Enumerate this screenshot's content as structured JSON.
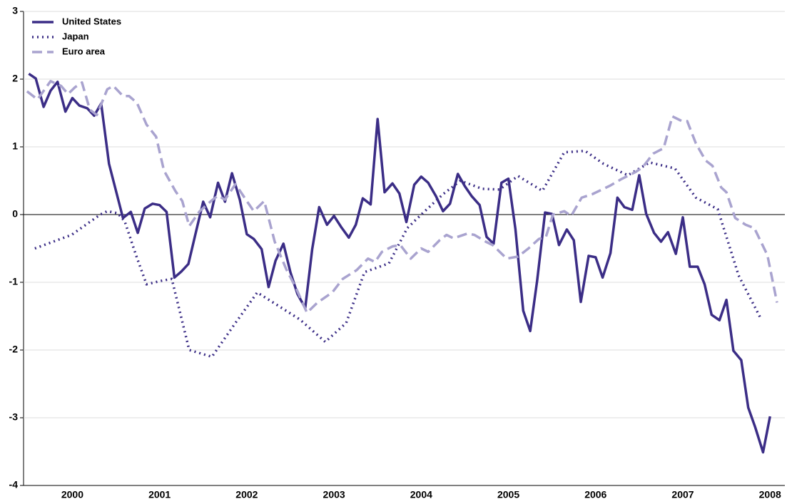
{
  "chart_data": {
    "type": "line",
    "xlim": [
      1999.94,
      2008.67
    ],
    "xticks": [
      {
        "value": 2000.5,
        "label": "2000"
      },
      {
        "value": 2001.5,
        "label": "2001"
      },
      {
        "value": 2002.5,
        "label": "2002"
      },
      {
        "value": 2003.5,
        "label": "2003"
      },
      {
        "value": 2004.5,
        "label": "2004"
      },
      {
        "value": 2005.5,
        "label": "2005"
      },
      {
        "value": 2006.5,
        "label": "2006"
      },
      {
        "value": 2007.5,
        "label": "2007"
      },
      {
        "value": 2008.5,
        "label": "2008"
      }
    ],
    "ylim": [
      -4,
      3
    ],
    "yticks": [
      -4,
      -3,
      -2,
      -1,
      0,
      1,
      2,
      3
    ],
    "grid": true,
    "legend": "top-left",
    "series": [
      {
        "name": "United States",
        "color": "#3b2d86",
        "style": "solid",
        "x": [
          2000.0,
          2000.08,
          2000.17,
          2000.25,
          2000.33,
          2000.42,
          2000.5,
          2000.58,
          2000.67,
          2000.75,
          2000.83,
          2000.92,
          2001.0,
          2001.08,
          2001.17,
          2001.25,
          2001.33,
          2001.42,
          2001.5,
          2001.58,
          2001.67,
          2001.75,
          2001.83,
          2001.92,
          2002.0,
          2002.08,
          2002.17,
          2002.25,
          2002.33,
          2002.42,
          2002.5,
          2002.58,
          2002.67,
          2002.75,
          2002.83,
          2002.92,
          2003.0,
          2003.08,
          2003.17,
          2003.25,
          2003.33,
          2003.42,
          2003.5,
          2003.58,
          2003.67,
          2003.75,
          2003.83,
          2003.92,
          2004.0,
          2004.08,
          2004.17,
          2004.25,
          2004.33,
          2004.42,
          2004.5,
          2004.58,
          2004.67,
          2004.75,
          2004.83,
          2004.92,
          2005.0,
          2005.08,
          2005.17,
          2005.25,
          2005.33,
          2005.42,
          2005.5,
          2005.58,
          2005.67,
          2005.75,
          2005.83,
          2005.92,
          2006.0,
          2006.08,
          2006.17,
          2006.25,
          2006.33,
          2006.42,
          2006.5,
          2006.58,
          2006.67,
          2006.75,
          2006.83,
          2006.92,
          2007.0,
          2007.08,
          2007.17,
          2007.25,
          2007.33,
          2007.42,
          2007.5,
          2007.58,
          2007.67,
          2007.75,
          2007.83,
          2007.92,
          2008.0,
          2008.08,
          2008.17,
          2008.25,
          2008.33,
          2008.42,
          2008.5
        ],
        "values": [
          2.08,
          2.01,
          1.59,
          1.83,
          1.96,
          1.52,
          1.72,
          1.61,
          1.57,
          1.46,
          1.64,
          0.75,
          0.35,
          -0.05,
          0.04,
          -0.27,
          0.09,
          0.16,
          0.14,
          0.04,
          -0.93,
          -0.84,
          -0.73,
          -0.24,
          0.19,
          -0.04,
          0.47,
          0.19,
          0.61,
          0.22,
          -0.29,
          -0.36,
          -0.51,
          -1.07,
          -0.68,
          -0.43,
          -0.85,
          -1.17,
          -1.38,
          -0.51,
          0.11,
          -0.15,
          -0.02,
          -0.18,
          -0.34,
          -0.15,
          0.24,
          0.15,
          1.41,
          0.33,
          0.46,
          0.31,
          -0.11,
          0.44,
          0.56,
          0.47,
          0.27,
          0.05,
          0.16,
          0.6,
          0.42,
          0.27,
          0.14,
          -0.33,
          -0.43,
          0.47,
          0.53,
          -0.21,
          -1.42,
          -1.72,
          -0.97,
          0.03,
          0.01,
          -0.45,
          -0.22,
          -0.38,
          -1.29,
          -0.61,
          -0.63,
          -0.93,
          -0.57,
          0.25,
          0.11,
          0.07,
          0.58,
          0.01,
          -0.27,
          -0.4,
          -0.26,
          -0.58,
          -0.04,
          -0.77,
          -0.77,
          -1.03,
          -1.48,
          -1.56,
          -1.26,
          -2.01,
          -2.15,
          -2.85,
          -3.14,
          -3.51,
          -2.98
        ]
      },
      {
        "name": "Japan",
        "color": "#3b2d86",
        "style": "dotted",
        "x": [
          2000.07,
          2000.49,
          2000.82,
          2000.9,
          2001.02,
          2001.1,
          2001.23,
          2001.35,
          2001.51,
          2001.64,
          2001.84,
          2002.1,
          2002.37,
          2002.62,
          2003.11,
          2003.4,
          2003.64,
          2003.85,
          2004.13,
          2004.34,
          2004.5,
          2004.75,
          2004.95,
          2005.2,
          2005.4,
          2005.61,
          2005.89,
          2006.14,
          2006.38,
          2006.59,
          2006.87,
          2007.12,
          2007.41,
          2007.65,
          2007.9,
          2008.14,
          2008.4
        ],
        "values": [
          -0.5,
          -0.3,
          0,
          0.05,
          0.02,
          -0.1,
          -0.6,
          -1.03,
          -0.98,
          -0.95,
          -2.0,
          -2.1,
          -1.6,
          -1.15,
          -1.55,
          -1.88,
          -1.6,
          -0.85,
          -0.72,
          -0.2,
          0,
          0.3,
          0.5,
          0.38,
          0.37,
          0.57,
          0.35,
          0.92,
          0.94,
          0.75,
          0.58,
          0.77,
          0.68,
          0.25,
          0.08,
          -0.9,
          -1.55
        ]
      },
      {
        "name": "Euro area",
        "color": "#a9a3cf",
        "style": "dashed",
        "x": [
          1999.98,
          2000.1,
          2000.25,
          2000.37,
          2000.45,
          2000.53,
          2000.61,
          2000.7,
          2000.78,
          2000.9,
          2000.97,
          2001.08,
          2001.15,
          2001.24,
          2001.35,
          2001.46,
          2001.55,
          2001.68,
          2001.76,
          2001.84,
          2001.96,
          2002.09,
          2002.17,
          2002.25,
          2002.37,
          2002.5,
          2002.58,
          2002.7,
          2002.82,
          2002.95,
          2003.07,
          2003.19,
          2003.31,
          2003.48,
          2003.6,
          2003.76,
          2003.89,
          2003.97,
          2004.05,
          2004.17,
          2004.26,
          2004.38,
          2004.5,
          2004.58,
          2004.71,
          2004.79,
          2004.87,
          2005.03,
          2005.11,
          2005.24,
          2005.32,
          2005.4,
          2005.48,
          2005.61,
          2005.73,
          2005.85,
          2005.93,
          2006.01,
          2006.14,
          2006.22,
          2006.34,
          2006.46,
          2006.67,
          2006.79,
          2006.96,
          2007.04,
          2007.16,
          2007.28,
          2007.38,
          2007.49,
          2007.55,
          2007.65,
          2007.76,
          2007.84,
          2007.94,
          2008.0,
          2008.1,
          2008.22,
          2008.32,
          2008.47,
          2008.58
        ],
        "values": [
          1.82,
          1.7,
          1.97,
          1.9,
          1.78,
          1.88,
          1.95,
          1.55,
          1.47,
          1.85,
          1.9,
          1.75,
          1.75,
          1.65,
          1.33,
          1.15,
          0.65,
          0.35,
          0.2,
          -0.17,
          0.05,
          0.2,
          0.28,
          0.22,
          0.45,
          0.2,
          0.05,
          0.2,
          -0.4,
          -0.8,
          -1.1,
          -1.45,
          -1.3,
          -1.15,
          -0.95,
          -0.82,
          -0.65,
          -0.7,
          -0.55,
          -0.47,
          -0.45,
          -0.65,
          -0.5,
          -0.55,
          -0.38,
          -0.3,
          -0.35,
          -0.28,
          -0.3,
          -0.4,
          -0.45,
          -0.55,
          -0.65,
          -0.62,
          -0.5,
          -0.36,
          -0.33,
          0,
          0.05,
          -0.02,
          0.25,
          0.3,
          0.43,
          0.52,
          0.63,
          0.7,
          0.9,
          0.98,
          1.45,
          1.38,
          1.38,
          1.05,
          0.8,
          0.72,
          0.4,
          0.33,
          -0.05,
          -0.15,
          -0.2,
          -0.6,
          -1.3
        ]
      }
    ]
  }
}
